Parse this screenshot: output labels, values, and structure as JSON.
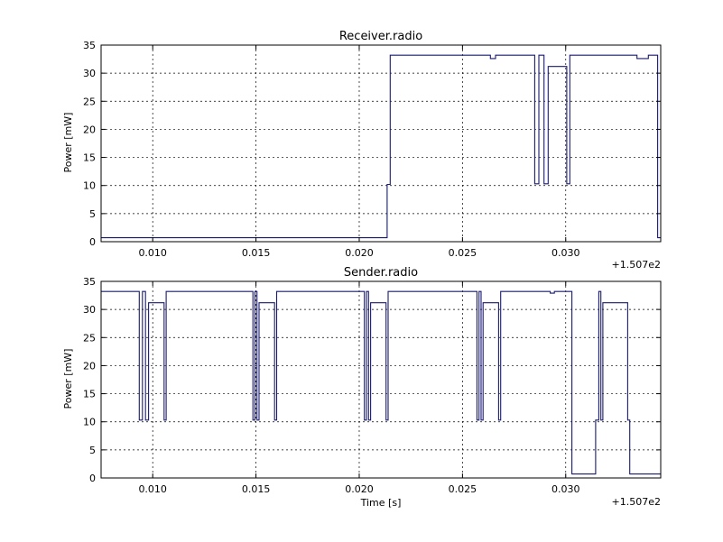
{
  "offset_label": "+1.507e2",
  "chart_data": [
    {
      "type": "line",
      "title": "Receiver.radio",
      "xlabel": "",
      "ylabel": "Power [mW]",
      "xlim": [
        0.0075,
        0.0346
      ],
      "ylim": [
        0,
        35
      ],
      "x_ticks": [
        0.01,
        0.015,
        0.02,
        0.025,
        0.03
      ],
      "x_tick_labels": [
        "0.010",
        "0.015",
        "0.020",
        "0.025",
        "0.030"
      ],
      "y_ticks": [
        0,
        5,
        10,
        15,
        20,
        25,
        30,
        35
      ],
      "y_tick_labels": [
        "0",
        "5",
        "10",
        "15",
        "20",
        "25",
        "30",
        "35"
      ],
      "grid": true,
      "line_color": "#1a1a6e",
      "series": [
        {
          "step": true,
          "x": [
            0.0075,
            0.02135,
            0.0215,
            0.02635,
            0.0266,
            0.0285,
            0.0287,
            0.02895,
            0.02915,
            0.03005,
            0.0302,
            0.03345,
            0.034,
            0.03445,
            0.0346
          ],
          "y": [
            0.7,
            10.2,
            33.2,
            32.6,
            33.2,
            10.3,
            33.2,
            10.3,
            31.2,
            10.3,
            33.2,
            32.6,
            33.2,
            0.7,
            0.7
          ]
        }
      ]
    },
    {
      "type": "line",
      "title": "Sender.radio",
      "xlabel": "Time [s]",
      "ylabel": "Power [mW]",
      "xlim": [
        0.0075,
        0.0346
      ],
      "ylim": [
        0,
        35
      ],
      "x_ticks": [
        0.01,
        0.015,
        0.02,
        0.025,
        0.03
      ],
      "x_tick_labels": [
        "0.010",
        "0.015",
        "0.020",
        "0.025",
        "0.030"
      ],
      "y_ticks": [
        0,
        5,
        10,
        15,
        20,
        25,
        30,
        35
      ],
      "y_tick_labels": [
        "0",
        "5",
        "10",
        "15",
        "20",
        "25",
        "30",
        "35"
      ],
      "grid": true,
      "line_color": "#1a1a6e",
      "series": [
        {
          "step": true,
          "x": [
            0.0075,
            0.00935,
            0.0095,
            0.00965,
            0.0098,
            0.0099,
            0.01055,
            0.01065,
            0.01485,
            0.01495,
            0.01505,
            0.01515,
            0.0153,
            0.0159,
            0.016,
            0.02025,
            0.02035,
            0.02045,
            0.02055,
            0.0207,
            0.0213,
            0.0214,
            0.0257,
            0.0258,
            0.0259,
            0.026,
            0.02615,
            0.02675,
            0.02685,
            0.02925,
            0.02945,
            0.02955,
            0.0303,
            0.03145,
            0.0316,
            0.0317,
            0.0318,
            0.033,
            0.0331,
            0.0346
          ],
          "y": [
            33.2,
            10.3,
            33.2,
            10.3,
            31.2,
            31.2,
            10.3,
            33.2,
            10.3,
            33.2,
            10.3,
            31.2,
            31.2,
            10.3,
            33.2,
            10.3,
            33.2,
            10.3,
            31.2,
            31.2,
            10.3,
            33.2,
            10.3,
            33.2,
            10.3,
            31.2,
            31.2,
            10.3,
            33.2,
            32.9,
            33.2,
            33.2,
            0.7,
            10.3,
            33.2,
            10.3,
            31.2,
            10.3,
            0.7,
            0.7
          ]
        }
      ]
    }
  ]
}
